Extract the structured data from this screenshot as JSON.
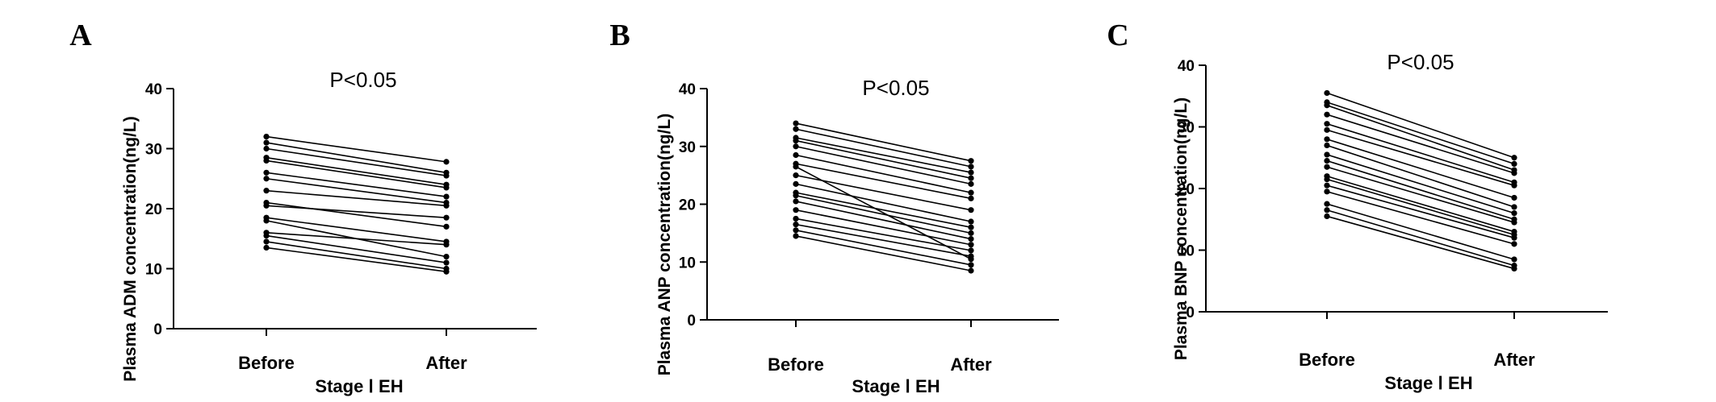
{
  "chart_data": [
    {
      "type": "line",
      "panel": "A",
      "annotation": "P<0.05",
      "ylabel": "Plasma ADM concentration(ng/L)",
      "xlabel": "Stage Ⅰ EH",
      "categories": [
        "Before",
        "After"
      ],
      "ylim": [
        0,
        40
      ],
      "yticks": [
        0,
        10,
        20,
        30,
        40
      ],
      "series": [
        {
          "values": [
            32.0,
            27.8
          ]
        },
        {
          "values": [
            31.0,
            26.0
          ]
        },
        {
          "values": [
            30.0,
            25.5
          ]
        },
        {
          "values": [
            28.5,
            24.0
          ]
        },
        {
          "values": [
            28.0,
            23.5
          ]
        },
        {
          "values": [
            26.0,
            22.0
          ]
        },
        {
          "values": [
            25.0,
            21.0
          ]
        },
        {
          "values": [
            23.0,
            20.5
          ]
        },
        {
          "values": [
            21.0,
            17.0
          ]
        },
        {
          "values": [
            20.5,
            18.5
          ]
        },
        {
          "values": [
            18.5,
            14.5
          ]
        },
        {
          "values": [
            18.0,
            12.0
          ]
        },
        {
          "values": [
            16.0,
            14.0
          ]
        },
        {
          "values": [
            15.5,
            11.0
          ]
        },
        {
          "values": [
            14.5,
            10.0
          ]
        },
        {
          "values": [
            13.5,
            9.5
          ]
        }
      ]
    },
    {
      "type": "line",
      "panel": "B",
      "annotation": "P<0.05",
      "ylabel": "Plasma ANP concentration(ng/L)",
      "xlabel": "Stage Ⅰ EH",
      "categories": [
        "Before",
        "After"
      ],
      "ylim": [
        0,
        40
      ],
      "yticks": [
        0,
        10,
        20,
        30,
        40
      ],
      "series": [
        {
          "values": [
            34.0,
            27.5
          ]
        },
        {
          "values": [
            33.0,
            26.5
          ]
        },
        {
          "values": [
            31.5,
            25.5
          ]
        },
        {
          "values": [
            31.0,
            24.5
          ]
        },
        {
          "values": [
            30.0,
            23.5
          ]
        },
        {
          "values": [
            28.5,
            22.0
          ]
        },
        {
          "values": [
            27.0,
            21.0
          ]
        },
        {
          "values": [
            25.0,
            19.0
          ]
        },
        {
          "values": [
            23.5,
            17.0
          ]
        },
        {
          "values": [
            22.0,
            16.0
          ]
        },
        {
          "values": [
            21.5,
            15.0
          ]
        },
        {
          "values": [
            20.5,
            14.0
          ]
        },
        {
          "values": [
            19.0,
            13.0
          ]
        },
        {
          "values": [
            17.5,
            12.0
          ]
        },
        {
          "values": [
            16.5,
            11.0
          ]
        },
        {
          "values": [
            15.5,
            9.5
          ]
        },
        {
          "values": [
            14.5,
            8.5
          ]
        },
        {
          "values": [
            26.5,
            10.5
          ]
        }
      ]
    },
    {
      "type": "line",
      "panel": "C",
      "annotation": "P<0.05",
      "ylabel": "Plasma BNP concentration(ng/L)",
      "xlabel": "Stage Ⅰ EH",
      "categories": [
        "Before",
        "After"
      ],
      "ylim": [
        0,
        40
      ],
      "yticks": [
        0,
        10,
        20,
        30,
        40
      ],
      "series": [
        {
          "values": [
            35.5,
            25.0
          ]
        },
        {
          "values": [
            34.0,
            24.0
          ]
        },
        {
          "values": [
            33.5,
            23.0
          ]
        },
        {
          "values": [
            32.0,
            22.5
          ]
        },
        {
          "values": [
            30.5,
            21.0
          ]
        },
        {
          "values": [
            29.5,
            20.5
          ]
        },
        {
          "values": [
            28.0,
            18.5
          ]
        },
        {
          "values": [
            27.0,
            17.0
          ]
        },
        {
          "values": [
            25.5,
            16.0
          ]
        },
        {
          "values": [
            24.5,
            15.0
          ]
        },
        {
          "values": [
            23.5,
            14.5
          ]
        },
        {
          "values": [
            22.0,
            13.0
          ]
        },
        {
          "values": [
            21.5,
            12.5
          ]
        },
        {
          "values": [
            20.5,
            12.0
          ]
        },
        {
          "values": [
            19.5,
            11.0
          ]
        },
        {
          "values": [
            17.5,
            8.5
          ]
        },
        {
          "values": [
            16.5,
            7.5
          ]
        },
        {
          "values": [
            15.5,
            7.0
          ]
        }
      ]
    }
  ]
}
